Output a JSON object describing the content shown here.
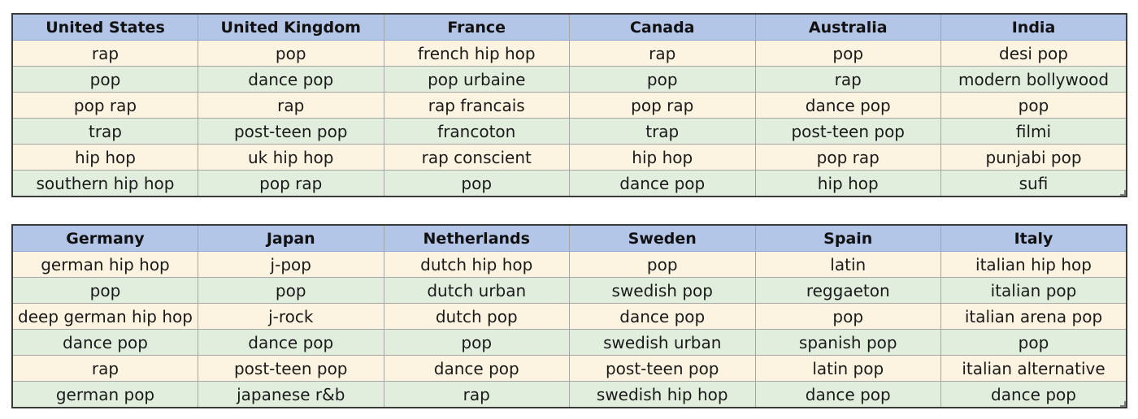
{
  "tables": [
    {
      "headers": [
        "United States",
        "United Kingdom",
        "France",
        "Canada",
        "Australia",
        "India"
      ],
      "rows": [
        [
          "rap",
          "pop",
          "french hip hop",
          "rap",
          "pop",
          "desi pop"
        ],
        [
          "pop",
          "dance pop",
          "pop urbaine",
          "pop",
          "rap",
          "modern bollywood"
        ],
        [
          "pop rap",
          "rap",
          "rap francais",
          "pop rap",
          "dance pop",
          "pop"
        ],
        [
          "trap",
          "post-teen pop",
          "francoton",
          "trap",
          "post-teen pop",
          "filmi"
        ],
        [
          "hip hop",
          "uk hip hop",
          "rap conscient",
          "hip hop",
          "pop rap",
          "punjabi pop"
        ],
        [
          "southern hip hop",
          "pop rap",
          "pop",
          "dance pop",
          "hip hop",
          "sufi"
        ]
      ]
    },
    {
      "headers": [
        "Germany",
        "Japan",
        "Netherlands",
        "Sweden",
        "Spain",
        "Italy"
      ],
      "rows": [
        [
          "german hip hop",
          "j-pop",
          "dutch hip hop",
          "pop",
          "latin",
          "italian hip hop"
        ],
        [
          "pop",
          "pop",
          "dutch urban",
          "swedish pop",
          "reggaeton",
          "italian pop"
        ],
        [
          "deep german hip hop",
          "j-rock",
          "dutch pop",
          "dance pop",
          "pop",
          "italian arena pop"
        ],
        [
          "dance pop",
          "dance pop",
          "pop",
          "swedish urban",
          "spanish pop",
          "pop"
        ],
        [
          "rap",
          "post-teen pop",
          "dance pop",
          "post-teen pop",
          "latin pop",
          "italian alternative"
        ],
        [
          "german pop",
          "japanese r&b",
          "rap",
          "swedish hip hop",
          "dance pop",
          "dance pop"
        ]
      ]
    }
  ],
  "colors": {
    "header_fill": "#b4c6e7",
    "odd_row_fill": "#fdf3e1",
    "even_row_fill": "#e2eedd",
    "border": "#3a3a3a"
  }
}
